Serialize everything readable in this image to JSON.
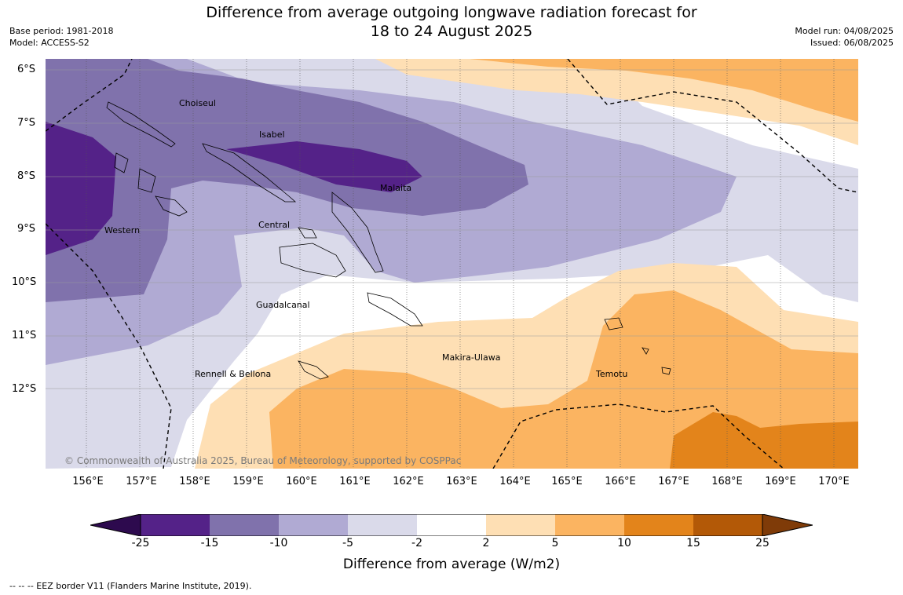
{
  "title_line1": "Difference from average outgoing longwave radiation forecast for",
  "title_line2": "18 to 24 August 2025",
  "base_period": "Base period: 1981-2018",
  "model": "Model: ACCESS-S2",
  "model_run": "Model run: 04/08/2025",
  "issued": "Issued: 06/08/2025",
  "lat_labels": [
    "6°S",
    "7°S",
    "8°S",
    "9°S",
    "10°S",
    "11°S",
    "12°S"
  ],
  "lon_labels": [
    "156°E",
    "157°E",
    "158°E",
    "159°E",
    "160°E",
    "161°E",
    "162°E",
    "163°E",
    "164°E",
    "165°E",
    "166°E",
    "167°E",
    "168°E",
    "169°E",
    "170°E"
  ],
  "regions": {
    "choiseul": "Choiseul",
    "isabel": "Isabel",
    "malaita": "Malaita",
    "western": "Western",
    "central": "Central",
    "guadalcanal": "Guadalcanal",
    "rennell": "Rennell & Bellona",
    "makira": "Makira-Ulawa",
    "temotu": "Temotu"
  },
  "copyright": "© Commonwealth of Australia 2025, Bureau of Meteorology, supported by COSPPac",
  "colorbar": {
    "ticks": [
      "-25",
      "-15",
      "-10",
      "-5",
      "-2",
      "2",
      "5",
      "10",
      "15",
      "25"
    ],
    "colors": {
      "below_min": "#2d0a4e",
      "c1": "#542288",
      "c2": "#8072ac",
      "c3": "#b0aad3",
      "c4": "#dadaea",
      "c5": "#ffffff",
      "c6": "#fedfb4",
      "c7": "#fbb461",
      "c8": "#e3841b",
      "c9": "#b35907",
      "above_max": "#7f3b08"
    },
    "label": "Difference from average (W/m2)"
  },
  "footer": "--  --  -- EEZ border V11 (Flanders Marine Institute, 2019)."
}
